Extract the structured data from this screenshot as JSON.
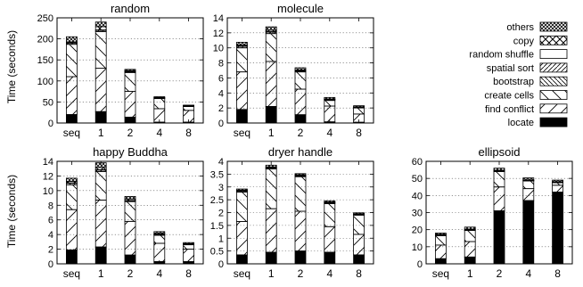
{
  "figure": {
    "ylabel": "Time (seconds)",
    "legend": [
      "others",
      "copy",
      "random shuffle",
      "spatial sort",
      "bootstrap",
      "create cells",
      "find conflict",
      "locate"
    ]
  },
  "chart_data": [
    {
      "type": "bar",
      "stacked": true,
      "title": "random",
      "categories": [
        "seq",
        "1",
        "2",
        "4",
        "8"
      ],
      "ylim": [
        0,
        250
      ],
      "yticks": [
        0,
        50,
        100,
        150,
        200,
        250
      ],
      "grid": "horizontal dotted",
      "series": [
        {
          "name": "locate",
          "pattern": "solid",
          "values": [
            20,
            27,
            14,
            2,
            2
          ]
        },
        {
          "name": "find conflict",
          "pattern": "dlines",
          "values": [
            90,
            103,
            61,
            32,
            28
          ]
        },
        {
          "name": "create cells",
          "pattern": "blines",
          "values": [
            77,
            87,
            45,
            24,
            9
          ]
        },
        {
          "name": "bootstrap",
          "pattern": "blines-dense",
          "values": [
            0,
            0,
            0,
            0,
            0
          ]
        },
        {
          "name": "spatial sort",
          "pattern": "dlines-dense",
          "values": [
            3,
            3,
            2,
            1,
            1
          ]
        },
        {
          "name": "random shuffle",
          "pattern": "empty",
          "values": [
            1,
            1,
            0.5,
            0.5,
            0.5
          ]
        },
        {
          "name": "copy",
          "pattern": "crossed",
          "values": [
            2,
            8,
            2,
            1,
            1
          ]
        },
        {
          "name": "others",
          "pattern": "crosshatch",
          "values": [
            12,
            11,
            3,
            2,
            1
          ]
        }
      ]
    },
    {
      "type": "bar",
      "stacked": true,
      "title": "molecule",
      "categories": [
        "seq",
        "1",
        "2",
        "4",
        "8"
      ],
      "ylim": [
        0,
        14
      ],
      "yticks": [
        0,
        2,
        4,
        6,
        8,
        10,
        12,
        14
      ],
      "grid": "horizontal dotted",
      "series": [
        {
          "name": "locate",
          "pattern": "solid",
          "values": [
            1.8,
            2.2,
            1.1,
            0.15,
            0.1
          ]
        },
        {
          "name": "find conflict",
          "pattern": "dlines",
          "values": [
            5.0,
            6.0,
            3.4,
            2.1,
            1.1
          ]
        },
        {
          "name": "create cells",
          "pattern": "blines",
          "values": [
            3.2,
            3.7,
            2.3,
            0.75,
            0.8
          ]
        },
        {
          "name": "bootstrap",
          "pattern": "blines-dense",
          "values": [
            0,
            0,
            0,
            0,
            0
          ]
        },
        {
          "name": "spatial sort",
          "pattern": "dlines-dense",
          "values": [
            0.2,
            0.2,
            0.1,
            0.1,
            0.05
          ]
        },
        {
          "name": "random shuffle",
          "pattern": "empty",
          "values": [
            0.05,
            0.05,
            0.05,
            0.05,
            0.05
          ]
        },
        {
          "name": "copy",
          "pattern": "crossed",
          "values": [
            0.15,
            0.2,
            0.1,
            0.05,
            0.05
          ]
        },
        {
          "name": "others",
          "pattern": "crosshatch",
          "values": [
            0.35,
            0.45,
            0.3,
            0.2,
            0.15
          ]
        }
      ]
    },
    {
      "type": "bar",
      "stacked": true,
      "title": "happy Buddha",
      "categories": [
        "seq",
        "1",
        "2",
        "4",
        "8"
      ],
      "ylim": [
        0,
        14
      ],
      "yticks": [
        0,
        2,
        4,
        6,
        8,
        10,
        12,
        14
      ],
      "grid": "horizontal dotted",
      "series": [
        {
          "name": "locate",
          "pattern": "solid",
          "values": [
            1.9,
            2.3,
            1.2,
            0.3,
            0.3
          ]
        },
        {
          "name": "find conflict",
          "pattern": "dlines",
          "values": [
            5.5,
            6.4,
            4.6,
            2.5,
            1.7
          ]
        },
        {
          "name": "create cells",
          "pattern": "blines",
          "values": [
            3.4,
            3.9,
            2.7,
            1.1,
            0.6
          ]
        },
        {
          "name": "bootstrap",
          "pattern": "blines-dense",
          "values": [
            0,
            0,
            0,
            0,
            0
          ]
        },
        {
          "name": "spatial sort",
          "pattern": "dlines-dense",
          "values": [
            0.2,
            0.2,
            0.1,
            0.1,
            0.05
          ]
        },
        {
          "name": "random shuffle",
          "pattern": "empty",
          "values": [
            0.05,
            0.05,
            0.05,
            0.05,
            0.05
          ]
        },
        {
          "name": "copy",
          "pattern": "crossed",
          "values": [
            0.2,
            0.3,
            0.2,
            0.1,
            0.05
          ]
        },
        {
          "name": "others",
          "pattern": "crosshatch",
          "values": [
            0.45,
            0.65,
            0.35,
            0.25,
            0.15
          ]
        }
      ]
    },
    {
      "type": "bar",
      "stacked": true,
      "title": "dryer handle",
      "categories": [
        "seq",
        "1",
        "2",
        "4",
        "8"
      ],
      "ylim": [
        0,
        4
      ],
      "yticks": [
        0,
        0.5,
        1,
        1.5,
        2,
        2.5,
        3,
        3.5,
        4
      ],
      "grid": "horizontal dotted",
      "series": [
        {
          "name": "locate",
          "pattern": "solid",
          "values": [
            0.35,
            0.45,
            0.5,
            0.45,
            0.35
          ]
        },
        {
          "name": "find conflict",
          "pattern": "dlines",
          "values": [
            1.3,
            1.7,
            1.55,
            1.0,
            0.8
          ]
        },
        {
          "name": "create cells",
          "pattern": "blines",
          "values": [
            1.15,
            1.55,
            1.35,
            0.9,
            0.75
          ]
        },
        {
          "name": "bootstrap",
          "pattern": "blines-dense",
          "values": [
            0,
            0,
            0,
            0,
            0
          ]
        },
        {
          "name": "spatial sort",
          "pattern": "dlines-dense",
          "values": [
            0.04,
            0.04,
            0.03,
            0.03,
            0.02
          ]
        },
        {
          "name": "random shuffle",
          "pattern": "empty",
          "values": [
            0.01,
            0.01,
            0.01,
            0.01,
            0.01
          ]
        },
        {
          "name": "copy",
          "pattern": "crossed",
          "values": [
            0.02,
            0.03,
            0.03,
            0.02,
            0.02
          ]
        },
        {
          "name": "others",
          "pattern": "crosshatch",
          "values": [
            0.05,
            0.07,
            0.05,
            0.05,
            0.04
          ]
        }
      ]
    },
    {
      "type": "bar",
      "stacked": true,
      "title": "ellipsoid",
      "categories": [
        "seq",
        "1",
        "2",
        "4",
        "8"
      ],
      "ylim": [
        0,
        60
      ],
      "yticks": [
        0,
        10,
        20,
        30,
        40,
        50,
        60
      ],
      "grid": "horizontal dotted",
      "series": [
        {
          "name": "locate",
          "pattern": "solid",
          "values": [
            3,
            4,
            31,
            37,
            42
          ]
        },
        {
          "name": "find conflict",
          "pattern": "dlines",
          "values": [
            8,
            9,
            14,
            7,
            4
          ]
        },
        {
          "name": "create cells",
          "pattern": "blines",
          "values": [
            5.5,
            6.5,
            9,
            4.5,
            1.5
          ]
        },
        {
          "name": "bootstrap",
          "pattern": "blines-dense",
          "values": [
            0,
            0,
            0,
            0,
            0
          ]
        },
        {
          "name": "spatial sort",
          "pattern": "dlines-dense",
          "values": [
            0.3,
            0.3,
            0.3,
            0.2,
            0.2
          ]
        },
        {
          "name": "random shuffle",
          "pattern": "empty",
          "values": [
            0.1,
            0.1,
            0.1,
            0.1,
            0.1
          ]
        },
        {
          "name": "copy",
          "pattern": "crossed",
          "values": [
            0.4,
            0.4,
            0.4,
            0.3,
            0.2
          ]
        },
        {
          "name": "others",
          "pattern": "crosshatch",
          "values": [
            0.7,
            1.2,
            1.2,
            1.2,
            1.0
          ]
        }
      ]
    }
  ]
}
